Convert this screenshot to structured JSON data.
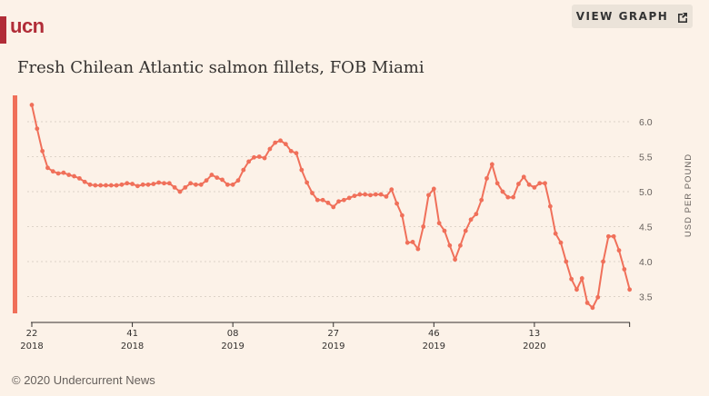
{
  "header": {
    "logo_text": "ucn",
    "view_graph_label": "VIEW GRAPH",
    "view_graph_icon": "external-link-icon"
  },
  "footer": {
    "copyright": "© 2020 Undercurrent News"
  },
  "colors": {
    "brand": "#b12d38",
    "line": "#f0705a",
    "background": "#fcf2e8"
  },
  "chart_data": {
    "type": "line",
    "title": "Fresh Chilean Atlantic salmon fillets, FOB Miami",
    "xlabel": "",
    "ylabel": "USD PER POUND",
    "ylim": [
      3.3,
      6.3
    ],
    "yticks": [
      6.0,
      5.5,
      5.0,
      4.5,
      4.0,
      3.5
    ],
    "ytick_labels": [
      "6.0",
      "5.5",
      "5.0",
      "4.5",
      "4.0",
      "3.5"
    ],
    "grid": true,
    "y_axis_position": "right",
    "x_start_week_index": 0,
    "xticks": [
      {
        "week_index": 0,
        "week": "22",
        "year": "2018"
      },
      {
        "week_index": 19,
        "week": "41",
        "year": "2018"
      },
      {
        "week_index": 38,
        "week": "08",
        "year": "2019"
      },
      {
        "week_index": 57,
        "week": "27",
        "year": "2019"
      },
      {
        "week_index": 76,
        "week": "46",
        "year": "2019"
      },
      {
        "week_index": 95,
        "week": "13",
        "year": "2020"
      },
      {
        "week_index": 113,
        "week": "",
        "year": ""
      }
    ],
    "series": [
      {
        "name": "Fresh Chilean Atlantic salmon fillets, FOB Miami",
        "values": [
          6.24,
          5.9,
          5.58,
          5.34,
          5.29,
          5.26,
          5.27,
          5.24,
          5.22,
          5.19,
          5.14,
          5.1,
          5.09,
          5.09,
          5.09,
          5.09,
          5.09,
          5.1,
          5.12,
          5.11,
          5.08,
          5.1,
          5.1,
          5.11,
          5.13,
          5.12,
          5.12,
          5.06,
          5.0,
          5.06,
          5.12,
          5.1,
          5.1,
          5.16,
          5.24,
          5.2,
          5.17,
          5.1,
          5.1,
          5.16,
          5.31,
          5.43,
          5.49,
          5.5,
          5.48,
          5.61,
          5.7,
          5.73,
          5.68,
          5.58,
          5.55,
          5.31,
          5.13,
          4.98,
          4.88,
          4.88,
          4.84,
          4.78,
          4.86,
          4.88,
          4.91,
          4.94,
          4.96,
          4.96,
          4.95,
          4.96,
          4.96,
          4.93,
          5.03,
          4.83,
          4.66,
          4.27,
          4.28,
          4.18,
          4.5,
          4.95,
          5.04,
          4.55,
          4.44,
          4.23,
          4.03,
          4.23,
          4.44,
          4.6,
          4.68,
          4.88,
          5.19,
          5.39,
          5.12,
          5.0,
          4.92,
          4.92,
          5.11,
          5.21,
          5.1,
          5.06,
          5.12,
          5.12,
          4.79,
          4.4,
          4.27,
          4.0,
          3.75,
          3.6,
          3.76,
          3.41,
          3.34,
          3.49,
          4.0,
          4.36,
          4.36,
          4.16,
          3.89,
          3.6
        ]
      }
    ]
  }
}
